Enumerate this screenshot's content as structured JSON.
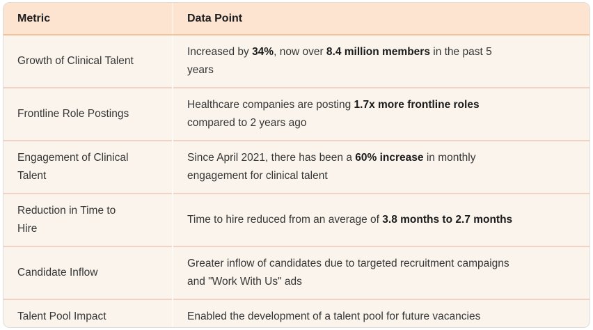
{
  "colors": {
    "header_bg": "#fce4d0",
    "body_bg": "#faf4ec",
    "row_divider": "#f0d3c6",
    "header_divider": "#f2c49c",
    "column_divider": "#fdfaf5",
    "text_dark": "#1d1d1f",
    "text_body": "#363636"
  },
  "table": {
    "columns": [
      {
        "label": "Metric"
      },
      {
        "label": "Data Point"
      }
    ],
    "rows": [
      {
        "metric": "Growth of Clinical Talent",
        "data_point": [
          {
            "text": "Increased by "
          },
          {
            "text": "34%",
            "bold": true
          },
          {
            "text": ", now over "
          },
          {
            "text": "8.4 million members",
            "bold": true
          },
          {
            "text": " in the past 5 years"
          }
        ]
      },
      {
        "metric": "Frontline Role Postings",
        "data_point": [
          {
            "text": "Healthcare companies are posting "
          },
          {
            "text": "1.7x more frontline roles",
            "bold": true
          },
          {
            "text": " compared to 2 years ago"
          }
        ]
      },
      {
        "metric": "Engagement of Clinical Talent",
        "data_point": [
          {
            "text": "Since April 2021, there has been a "
          },
          {
            "text": "60% increase",
            "bold": true
          },
          {
            "text": " in monthly engagement for clinical talent"
          }
        ]
      },
      {
        "metric": "Reduction in Time to Hire",
        "data_point": [
          {
            "text": "Time to hire reduced from an average of "
          },
          {
            "text": "3.8 months to 2.7 months",
            "bold": true
          }
        ]
      },
      {
        "metric": "Candidate Inflow",
        "data_point": [
          {
            "text": "Greater inflow of candidates due to targeted recruitment campaigns and \"Work With Us\" ads"
          }
        ]
      },
      {
        "metric": "Talent Pool Impact",
        "data_point": [
          {
            "text": "Enabled the development of a talent pool for future vacancies"
          }
        ]
      }
    ]
  }
}
